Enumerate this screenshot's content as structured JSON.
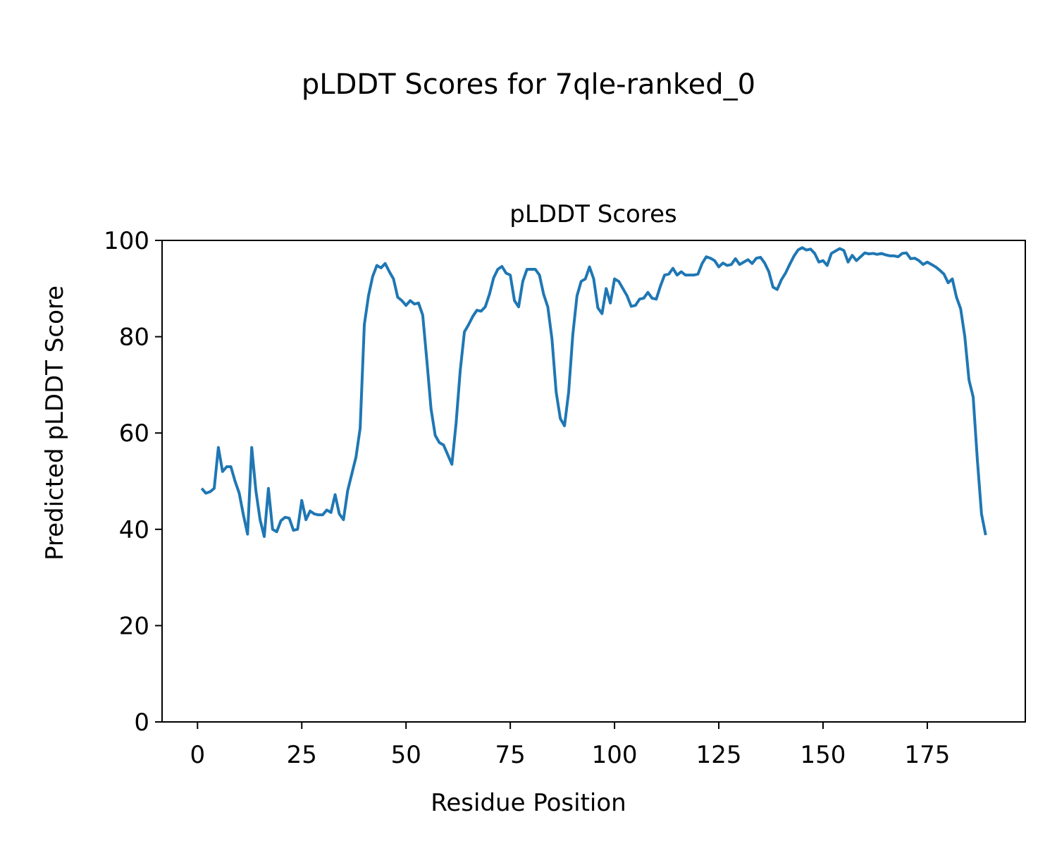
{
  "figure": {
    "suptitle": "pLDDT Scores for 7qle-ranked_0"
  },
  "chart_data": {
    "type": "line",
    "title": "pLDDT Scores",
    "xlabel": "Residue Position",
    "ylabel": "Predicted pLDDT Score",
    "xlim": [
      -8.5,
      198.5
    ],
    "ylim": [
      0,
      100
    ],
    "xticks": [
      0,
      25,
      50,
      75,
      100,
      125,
      150,
      175
    ],
    "yticks": [
      0,
      20,
      40,
      60,
      80,
      100
    ],
    "grid": false,
    "line_color": "#1f77b4",
    "series": [
      {
        "x": [
          1,
          2,
          3,
          4,
          5,
          6,
          7,
          8,
          9,
          10,
          11,
          12,
          13,
          14,
          15,
          16,
          17,
          18,
          19,
          20,
          21,
          22,
          23,
          24,
          25,
          26,
          27,
          28,
          29,
          30,
          31,
          32,
          33,
          34,
          35,
          36,
          37,
          38,
          39,
          40,
          41,
          42,
          43,
          44,
          45,
          46,
          47,
          48,
          49,
          50,
          51,
          52,
          53,
          54,
          55,
          56,
          57,
          58,
          59,
          60,
          61,
          62,
          63,
          64,
          65,
          66,
          67,
          68,
          69,
          70,
          71,
          72,
          73,
          74,
          75,
          76,
          77,
          78,
          79,
          80,
          81,
          82,
          83,
          84,
          85,
          86,
          87,
          88,
          89,
          90,
          91,
          92,
          93,
          94,
          95,
          96,
          97,
          98,
          99,
          100,
          101,
          102,
          103,
          104,
          105,
          106,
          107,
          108,
          109,
          110,
          111,
          112,
          113,
          114,
          115,
          116,
          117,
          118,
          119,
          120,
          121,
          122,
          123,
          124,
          125,
          126,
          127,
          128,
          129,
          130,
          131,
          132,
          133,
          134,
          135,
          136,
          137,
          138,
          139,
          140,
          141,
          142,
          143,
          144,
          145,
          146,
          147,
          148,
          149,
          150,
          151,
          152,
          153,
          154,
          155,
          156,
          157,
          158,
          159,
          160,
          161,
          162,
          163,
          164,
          165,
          166,
          167,
          168,
          169,
          170,
          171,
          172,
          173,
          174,
          175,
          176,
          177,
          178,
          179,
          180,
          181,
          182,
          183,
          184,
          185,
          186,
          187,
          188,
          189
        ],
        "y": [
          48.5,
          47.5,
          47.8,
          48.5,
          57.0,
          52.0,
          53.0,
          53.0,
          50.0,
          47.5,
          43.0,
          39.0,
          57.0,
          48.0,
          42.0,
          38.5,
          48.5,
          40.0,
          39.5,
          41.8,
          42.5,
          42.3,
          39.8,
          40.0,
          46.0,
          42.0,
          43.8,
          43.2,
          43.0,
          43.0,
          44.0,
          43.5,
          47.2,
          43.2,
          42.0,
          48.0,
          51.5,
          55.0,
          61.0,
          82.5,
          88.5,
          92.5,
          94.8,
          94.3,
          95.2,
          93.5,
          92.0,
          88.2,
          87.5,
          86.5,
          87.5,
          86.8,
          87.0,
          84.5,
          75.0,
          65.0,
          59.5,
          58.0,
          57.5,
          55.5,
          53.5,
          62.0,
          73.0,
          81.0,
          82.5,
          84.2,
          85.5,
          85.3,
          86.2,
          88.8,
          92.2,
          94.0,
          94.6,
          93.2,
          92.8,
          87.5,
          86.2,
          91.5,
          94.0,
          94.0,
          94.0,
          92.8,
          88.8,
          86.2,
          79.5,
          68.5,
          63.0,
          61.5,
          68.5,
          80.5,
          88.5,
          91.5,
          92.0,
          94.5,
          92.0,
          86.0,
          84.8,
          90.0,
          87.0,
          92.0,
          91.5,
          90.0,
          88.5,
          86.3,
          86.5,
          87.8,
          88.0,
          89.2,
          88.0,
          87.8,
          90.5,
          92.8,
          93.0,
          94.2,
          92.8,
          93.5,
          92.8,
          92.8,
          92.8,
          93.0,
          95.2,
          96.6,
          96.3,
          95.8,
          94.5,
          95.3,
          94.8,
          95.0,
          96.2,
          95.0,
          95.5,
          96.0,
          95.2,
          96.3,
          96.5,
          95.3,
          93.5,
          90.3,
          89.8,
          91.8,
          93.2,
          95.0,
          96.7,
          98.0,
          98.5,
          98.0,
          98.2,
          97.3,
          95.5,
          95.8,
          94.8,
          97.3,
          97.8,
          98.3,
          97.9,
          95.5,
          96.9,
          95.8,
          96.6,
          97.4,
          97.2,
          97.3,
          97.1,
          97.3,
          97.0,
          96.8,
          96.8,
          96.6,
          97.3,
          97.4,
          96.2,
          96.3,
          95.8,
          95.0,
          95.5,
          95.0,
          94.5,
          93.8,
          93.0,
          91.2,
          92.0,
          88.2,
          85.8,
          80.0,
          71.0,
          67.5,
          54.5,
          43.2,
          38.8
        ]
      }
    ]
  }
}
